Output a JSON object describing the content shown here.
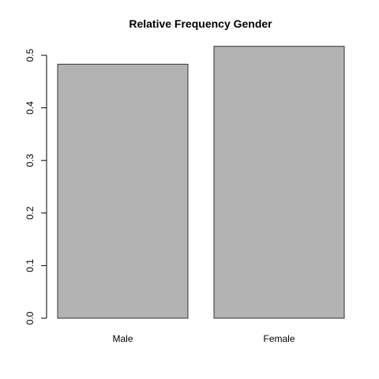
{
  "chart_data": {
    "type": "bar",
    "title": "Relative Frequency Gender",
    "xlabel": "",
    "ylabel": "",
    "categories": [
      "Male",
      "Female"
    ],
    "values": [
      0.483,
      0.517
    ],
    "ylim": [
      0,
      0.5
    ],
    "yticks": [
      0.0,
      0.1,
      0.2,
      0.3,
      0.4,
      0.5
    ],
    "ytick_labels": [
      "0.0",
      "0.1",
      "0.2",
      "0.3",
      "0.4",
      "0.5"
    ],
    "bar_color": "#b3b3b3",
    "bar_border": "#333333",
    "grid": false,
    "legend": "none"
  }
}
